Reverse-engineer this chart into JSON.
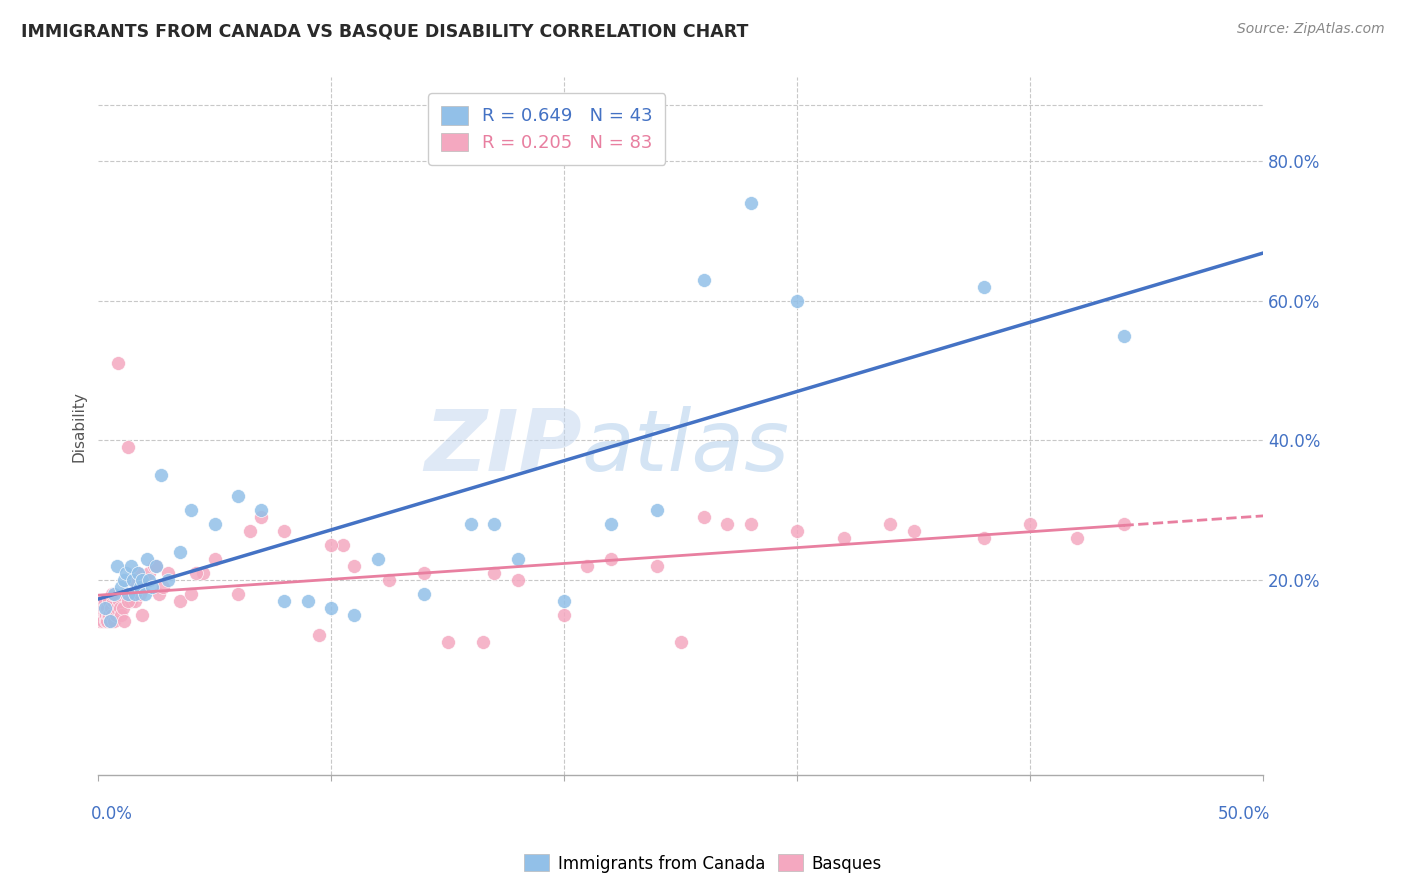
{
  "title": "IMMIGRANTS FROM CANADA VS BASQUE DISABILITY CORRELATION CHART",
  "source": "Source: ZipAtlas.com",
  "ylabel": "Disability",
  "xlim": [
    0.0,
    50.0
  ],
  "ylim": [
    -8.0,
    92.0
  ],
  "right_yticks": [
    20.0,
    40.0,
    60.0,
    80.0
  ],
  "legend1_label": "R = 0.649   N = 43",
  "legend2_label": "R = 0.205   N = 83",
  "blue_color": "#92c0e8",
  "pink_color": "#f4a8c0",
  "line_blue": "#4472c4",
  "line_pink": "#e87fa0",
  "watermark_zip": "ZIP",
  "watermark_atlas": "atlas",
  "canada_x": [
    0.3,
    0.5,
    0.7,
    0.8,
    1.0,
    1.1,
    1.2,
    1.3,
    1.4,
    1.5,
    1.6,
    1.7,
    1.8,
    1.9,
    2.0,
    2.1,
    2.2,
    2.3,
    2.5,
    2.7,
    3.0,
    3.5,
    4.0,
    5.0,
    6.0,
    7.0,
    8.0,
    9.0,
    10.0,
    11.0,
    12.0,
    14.0,
    16.0,
    17.0,
    18.0,
    20.0,
    22.0,
    24.0,
    26.0,
    28.0,
    30.0,
    38.0,
    44.0
  ],
  "canada_y": [
    16.0,
    14.0,
    18.0,
    22.0,
    19.0,
    20.0,
    21.0,
    18.0,
    22.0,
    20.0,
    18.0,
    21.0,
    19.0,
    20.0,
    18.0,
    23.0,
    20.0,
    19.0,
    22.0,
    35.0,
    20.0,
    24.0,
    30.0,
    28.0,
    32.0,
    30.0,
    17.0,
    17.0,
    16.0,
    15.0,
    23.0,
    18.0,
    28.0,
    28.0,
    23.0,
    17.0,
    28.0,
    30.0,
    63.0,
    74.0,
    60.0,
    62.0,
    55.0
  ],
  "basque_x": [
    0.05,
    0.08,
    0.1,
    0.12,
    0.15,
    0.18,
    0.2,
    0.22,
    0.25,
    0.28,
    0.3,
    0.33,
    0.35,
    0.38,
    0.4,
    0.43,
    0.45,
    0.48,
    0.5,
    0.55,
    0.6,
    0.65,
    0.7,
    0.75,
    0.8,
    0.85,
    0.9,
    0.95,
    1.0,
    1.05,
    1.1,
    1.2,
    1.3,
    1.4,
    1.5,
    1.6,
    1.7,
    1.8,
    1.9,
    2.0,
    2.2,
    2.4,
    2.6,
    2.8,
    3.0,
    3.5,
    4.0,
    4.5,
    5.0,
    6.0,
    7.0,
    8.0,
    9.5,
    10.5,
    11.0,
    12.5,
    14.0,
    15.0,
    16.5,
    17.0,
    18.0,
    20.0,
    21.0,
    22.0,
    24.0,
    25.0,
    26.0,
    28.0,
    30.0,
    32.0,
    34.0,
    35.0,
    38.0,
    40.0,
    42.0,
    44.0,
    0.6,
    1.3,
    2.5,
    4.2,
    6.5,
    10.0,
    27.0
  ],
  "basque_y": [
    15.0,
    14.0,
    16.0,
    15.0,
    16.0,
    15.0,
    17.0,
    14.0,
    16.0,
    15.0,
    17.0,
    14.0,
    15.0,
    16.0,
    14.0,
    15.0,
    17.0,
    15.0,
    14.0,
    16.0,
    15.0,
    17.0,
    14.0,
    15.0,
    16.0,
    51.0,
    17.0,
    16.0,
    15.0,
    16.0,
    14.0,
    18.0,
    39.0,
    17.0,
    20.0,
    17.0,
    21.0,
    18.0,
    15.0,
    20.0,
    21.0,
    22.0,
    18.0,
    19.0,
    21.0,
    17.0,
    18.0,
    21.0,
    23.0,
    18.0,
    29.0,
    27.0,
    12.0,
    25.0,
    22.0,
    20.0,
    21.0,
    11.0,
    11.0,
    21.0,
    20.0,
    15.0,
    22.0,
    23.0,
    22.0,
    11.0,
    29.0,
    28.0,
    27.0,
    26.0,
    28.0,
    27.0,
    26.0,
    28.0,
    26.0,
    28.0,
    18.0,
    17.0,
    22.0,
    21.0,
    27.0,
    25.0,
    28.0
  ]
}
